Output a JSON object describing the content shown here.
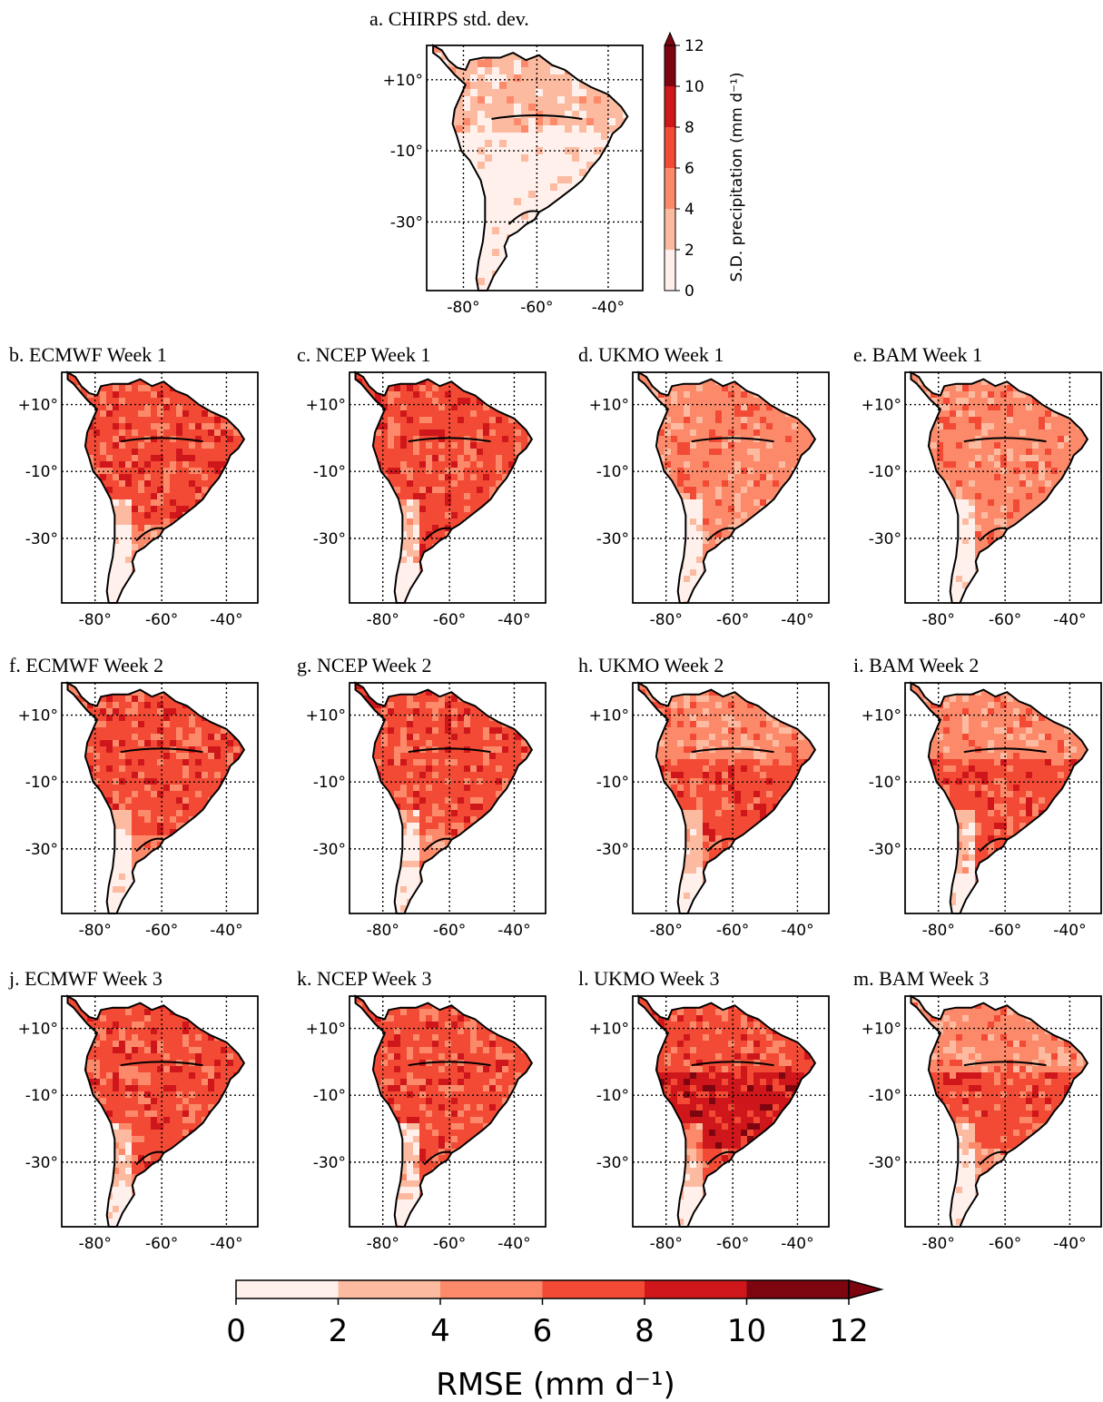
{
  "top_panel": {
    "title": "a. CHIRPS std. dev.",
    "colorbar_label": "S.D. precipitation (mm d⁻¹)",
    "colorbar_ticks": [
      "0",
      "2",
      "4",
      "6",
      "8",
      "10",
      "12"
    ]
  },
  "panels": [
    {
      "id": "b",
      "title": "b. ECMWF Week 1"
    },
    {
      "id": "c",
      "title": "c. NCEP Week 1"
    },
    {
      "id": "d",
      "title": "d. UKMO Week 1"
    },
    {
      "id": "e",
      "title": "e. BAM Week 1"
    },
    {
      "id": "f",
      "title": "f. ECMWF Week 2"
    },
    {
      "id": "g",
      "title": "g. NCEP Week 2"
    },
    {
      "id": "h",
      "title": "h. UKMO Week 2"
    },
    {
      "id": "i",
      "title": "i. BAM Week 2"
    },
    {
      "id": "j",
      "title": "j. ECMWF Week 3"
    },
    {
      "id": "k",
      "title": "k. NCEP Week 3"
    },
    {
      "id": "l",
      "title": "l. UKMO Week 3"
    },
    {
      "id": "m",
      "title": "m. BAM Week 3"
    }
  ],
  "axes": {
    "lon_ticks": [
      "-80°",
      "-60°",
      "-40°"
    ],
    "lat_ticks": [
      "+10°",
      "-10°",
      "-30°"
    ]
  },
  "bottom_colorbar": {
    "label": "RMSE (mm d⁻¹)",
    "ticks": [
      "0",
      "2",
      "4",
      "6",
      "8",
      "10",
      "12"
    ]
  },
  "colors": {
    "levels": [
      "#fff0eb",
      "#fcbba1",
      "#fc8a6a",
      "#f24a35",
      "#cf171b",
      "#7d0510"
    ],
    "land_outline": "#000000",
    "grid": "#000000"
  },
  "field_levels": {
    "a": [
      1,
      0,
      0
    ],
    "b": [
      3,
      3,
      2
    ],
    "c": [
      3,
      3,
      3
    ],
    "d": [
      2,
      2,
      2
    ],
    "e": [
      2,
      2,
      2
    ],
    "f": [
      3,
      3,
      2
    ],
    "g": [
      3,
      3,
      2
    ],
    "h": [
      2,
      3,
      3
    ],
    "i": [
      2,
      3,
      3
    ],
    "j": [
      3,
      3,
      3
    ],
    "k": [
      3,
      3,
      3
    ],
    "l": [
      3,
      4,
      3
    ],
    "m": [
      2,
      3,
      2
    ]
  }
}
